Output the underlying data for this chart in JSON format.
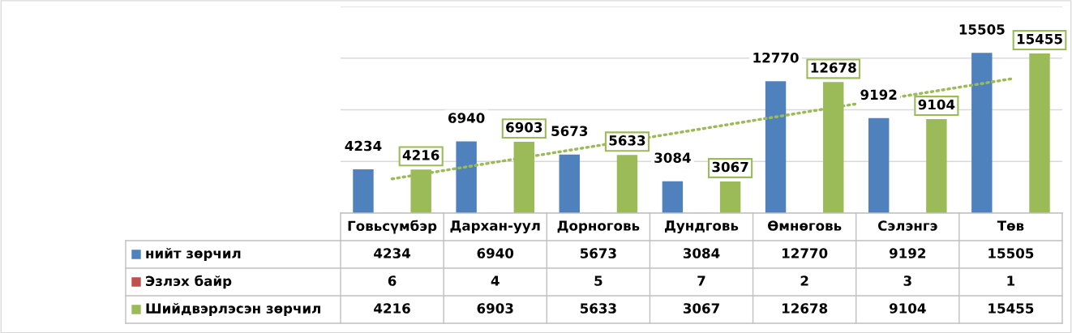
{
  "chart_data": {
    "type": "bar",
    "categories": [
      "Говьсүмбэр",
      "Дархан-уул",
      "Дорноговь",
      "Дундговь",
      "Өмнөговь",
      "Сэлэнгэ",
      "Төв"
    ],
    "series": [
      {
        "name": "нийт зөрчил",
        "color": "#4f81bd",
        "values": [
          4234,
          6940,
          5673,
          3084,
          12770,
          9192,
          15505
        ]
      },
      {
        "name": "Эзлэх байр",
        "color": "#c0504d",
        "values": [
          6,
          4,
          5,
          7,
          2,
          3,
          1
        ]
      },
      {
        "name": "Шийдвэрлэсэн зөрчил",
        "color": "#9bbb59",
        "values": [
          4216,
          6903,
          5633,
          3067,
          12678,
          9104,
          15455
        ]
      },
      {
        "type": "line",
        "color": "#9bbb59",
        "line_style": "dotted",
        "values": [
          3312,
          4925,
          6538,
          8151,
          9764,
          11377,
          12990
        ],
        "value_labels": [
          null,
          null,
          null,
          null,
          null,
          null,
          null
        ]
      }
    ],
    "annotations": [
      "4234",
      "6940",
      "5673",
      "3084",
      "12770",
      "9192",
      "15505",
      "4216",
      "6903",
      "5633",
      "3067",
      "12678",
      "9104",
      "15455"
    ],
    "ylim": [
      0,
      20000
    ],
    "yticks": [
      {
        "value": 0,
        "label": null
      },
      {
        "value": 5000,
        "label": null
      },
      {
        "value": 10000,
        "label": null
      },
      {
        "value": 15000,
        "label": null
      },
      {
        "value": 20000,
        "label": null
      }
    ],
    "grid": "y",
    "tick_labels": "x",
    "data_labels": true,
    "legend": "bottom left"
  }
}
